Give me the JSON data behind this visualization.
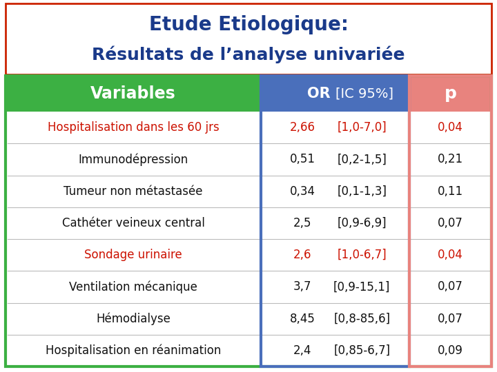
{
  "title_line1": "Etude Etiologique:",
  "title_line2": "Résultats de l’analyse univariée",
  "rows": [
    {
      "label": "Hospitalisation dans les 60 jrs",
      "or": "2,66",
      "ci": "[1,0-7,0]",
      "p": "0,04",
      "highlight": true
    },
    {
      "label": "Immunodépression",
      "or": "0,51",
      "ci": "[0,2-1,5]",
      "p": "0,21",
      "highlight": false
    },
    {
      "label": "Tumeur non métastasée",
      "or": "0,34",
      "ci": "[0,1-1,3]",
      "p": "0,11",
      "highlight": false
    },
    {
      "label": "Cathéter veineux central",
      "or": "2,5",
      "ci": "[0,9-6,9]",
      "p": "0,07",
      "highlight": false
    },
    {
      "label": "Sondage urinaire",
      "or": "2,6",
      "ci": "[1,0-6,7]",
      "p": "0,04",
      "highlight": true
    },
    {
      "label": "Ventilation mécanique",
      "or": "3,7",
      "ci": "[0,9-15,1]",
      "p": "0,07",
      "highlight": false
    },
    {
      "label": "Hémodialyse",
      "or": "8,45",
      "ci": "[0,8-85,6]",
      "p": "0,07",
      "highlight": false
    },
    {
      "label": "Hospitalisation en réanimation",
      "or": "2,4",
      "ci": "[0,85-6,7]",
      "p": "0,09",
      "highlight": false
    }
  ],
  "header_bg_variables": "#3cb043",
  "header_bg_or": "#4a6fbb",
  "header_bg_p": "#e8837e",
  "header_text_color": "#ffffff",
  "highlight_color": "#cc1100",
  "normal_text_color": "#111111",
  "table_outer_border": "#3cb043",
  "or_col_border": "#4a6fbb",
  "p_col_border": "#e8837e",
  "title_color": "#1a3a8a",
  "title_border_color": "#cc2200",
  "background": "#ffffff",
  "fig_w": 7.2,
  "fig_h": 5.4,
  "dpi": 100
}
